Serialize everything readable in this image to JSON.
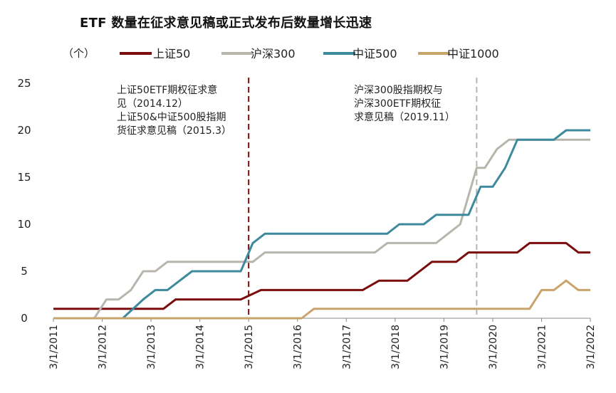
{
  "chart_data": {
    "type": "line",
    "title": "ETF 数量在征求意见稿或正式发布后数量增长迅速",
    "unit_label": "（个）",
    "ylim": [
      0,
      25
    ],
    "y_ticks": [
      0,
      5,
      10,
      15,
      20,
      25
    ],
    "x_range": [
      "2011-03-01",
      "2022-03-01"
    ],
    "x_tick_labels": [
      "3/1/2011",
      "3/1/2012",
      "3/1/2013",
      "3/1/2014",
      "3/1/2015",
      "3/1/2016",
      "3/1/2017",
      "3/1/2018",
      "3/1/2019",
      "3/1/2020",
      "3/1/2021",
      "3/1/2022"
    ],
    "grid": false,
    "legend_position": "top",
    "series": [
      {
        "name": "上证50",
        "color": "#7a0c0c",
        "points": [
          [
            "2011-03-01",
            1
          ],
          [
            "2013-06-01",
            1
          ],
          [
            "2013-09-01",
            2
          ],
          [
            "2015-01-01",
            2
          ],
          [
            "2015-06-01",
            3
          ],
          [
            "2017-07-01",
            3
          ],
          [
            "2017-11-01",
            4
          ],
          [
            "2018-06-01",
            4
          ],
          [
            "2018-12-01",
            6
          ],
          [
            "2019-06-01",
            6
          ],
          [
            "2019-09-01",
            7
          ],
          [
            "2020-09-01",
            7
          ],
          [
            "2020-12-01",
            8
          ],
          [
            "2021-09-01",
            8
          ],
          [
            "2021-12-01",
            7
          ],
          [
            "2022-03-01",
            7
          ]
        ]
      },
      {
        "name": "沪深300",
        "color": "#b8b5ad",
        "points": [
          [
            "2011-03-01",
            0
          ],
          [
            "2012-01-01",
            0
          ],
          [
            "2012-04-01",
            2
          ],
          [
            "2012-07-01",
            2
          ],
          [
            "2012-10-01",
            3
          ],
          [
            "2013-01-01",
            5
          ],
          [
            "2013-04-01",
            5
          ],
          [
            "2013-07-01",
            6
          ],
          [
            "2015-04-01",
            6
          ],
          [
            "2015-07-01",
            7
          ],
          [
            "2017-10-01",
            7
          ],
          [
            "2018-01-01",
            8
          ],
          [
            "2019-01-01",
            8
          ],
          [
            "2019-07-01",
            10
          ],
          [
            "2019-11-01",
            16
          ],
          [
            "2020-01-01",
            16
          ],
          [
            "2020-04-01",
            18
          ],
          [
            "2020-07-01",
            19
          ],
          [
            "2022-03-01",
            19
          ]
        ]
      },
      {
        "name": "中证500",
        "color": "#3d8a9e",
        "points": [
          [
            "2011-03-01",
            0
          ],
          [
            "2012-08-01",
            0
          ],
          [
            "2013-01-01",
            2
          ],
          [
            "2013-04-01",
            3
          ],
          [
            "2013-07-01",
            3
          ],
          [
            "2014-01-01",
            5
          ],
          [
            "2015-01-01",
            5
          ],
          [
            "2015-04-01",
            8
          ],
          [
            "2015-07-01",
            9
          ],
          [
            "2018-01-01",
            9
          ],
          [
            "2018-04-01",
            10
          ],
          [
            "2018-10-01",
            10
          ],
          [
            "2019-01-01",
            11
          ],
          [
            "2019-09-01",
            11
          ],
          [
            "2019-12-01",
            14
          ],
          [
            "2020-03-01",
            14
          ],
          [
            "2020-06-01",
            16
          ],
          [
            "2020-09-01",
            19
          ],
          [
            "2021-06-01",
            19
          ],
          [
            "2021-09-01",
            20
          ],
          [
            "2022-03-01",
            20
          ]
        ]
      },
      {
        "name": "中证1000",
        "color": "#c9a46a",
        "points": [
          [
            "2011-03-01",
            0
          ],
          [
            "2016-04-01",
            0
          ],
          [
            "2016-07-01",
            1
          ],
          [
            "2020-12-01",
            1
          ],
          [
            "2021-03-01",
            3
          ],
          [
            "2021-06-01",
            3
          ],
          [
            "2021-09-01",
            4
          ],
          [
            "2021-12-01",
            3
          ],
          [
            "2022-03-01",
            3
          ]
        ]
      }
    ],
    "annotations": [
      {
        "date": "2015-03-01",
        "line_color": "#7a0c0c",
        "line_style": "dashed",
        "lines": [
          "上证50ETF期权征求意",
          "见（2014.12）",
          "上证50&中证500股指期",
          "货征求意见稿（2015.3）"
        ]
      },
      {
        "date": "2019-11-01",
        "line_color": "#b8b5ad",
        "line_style": "dashed",
        "lines": [
          "沪深300股指期权与",
          "沪深300ETF期权征",
          "求意见稿（2019.11）"
        ]
      }
    ]
  }
}
